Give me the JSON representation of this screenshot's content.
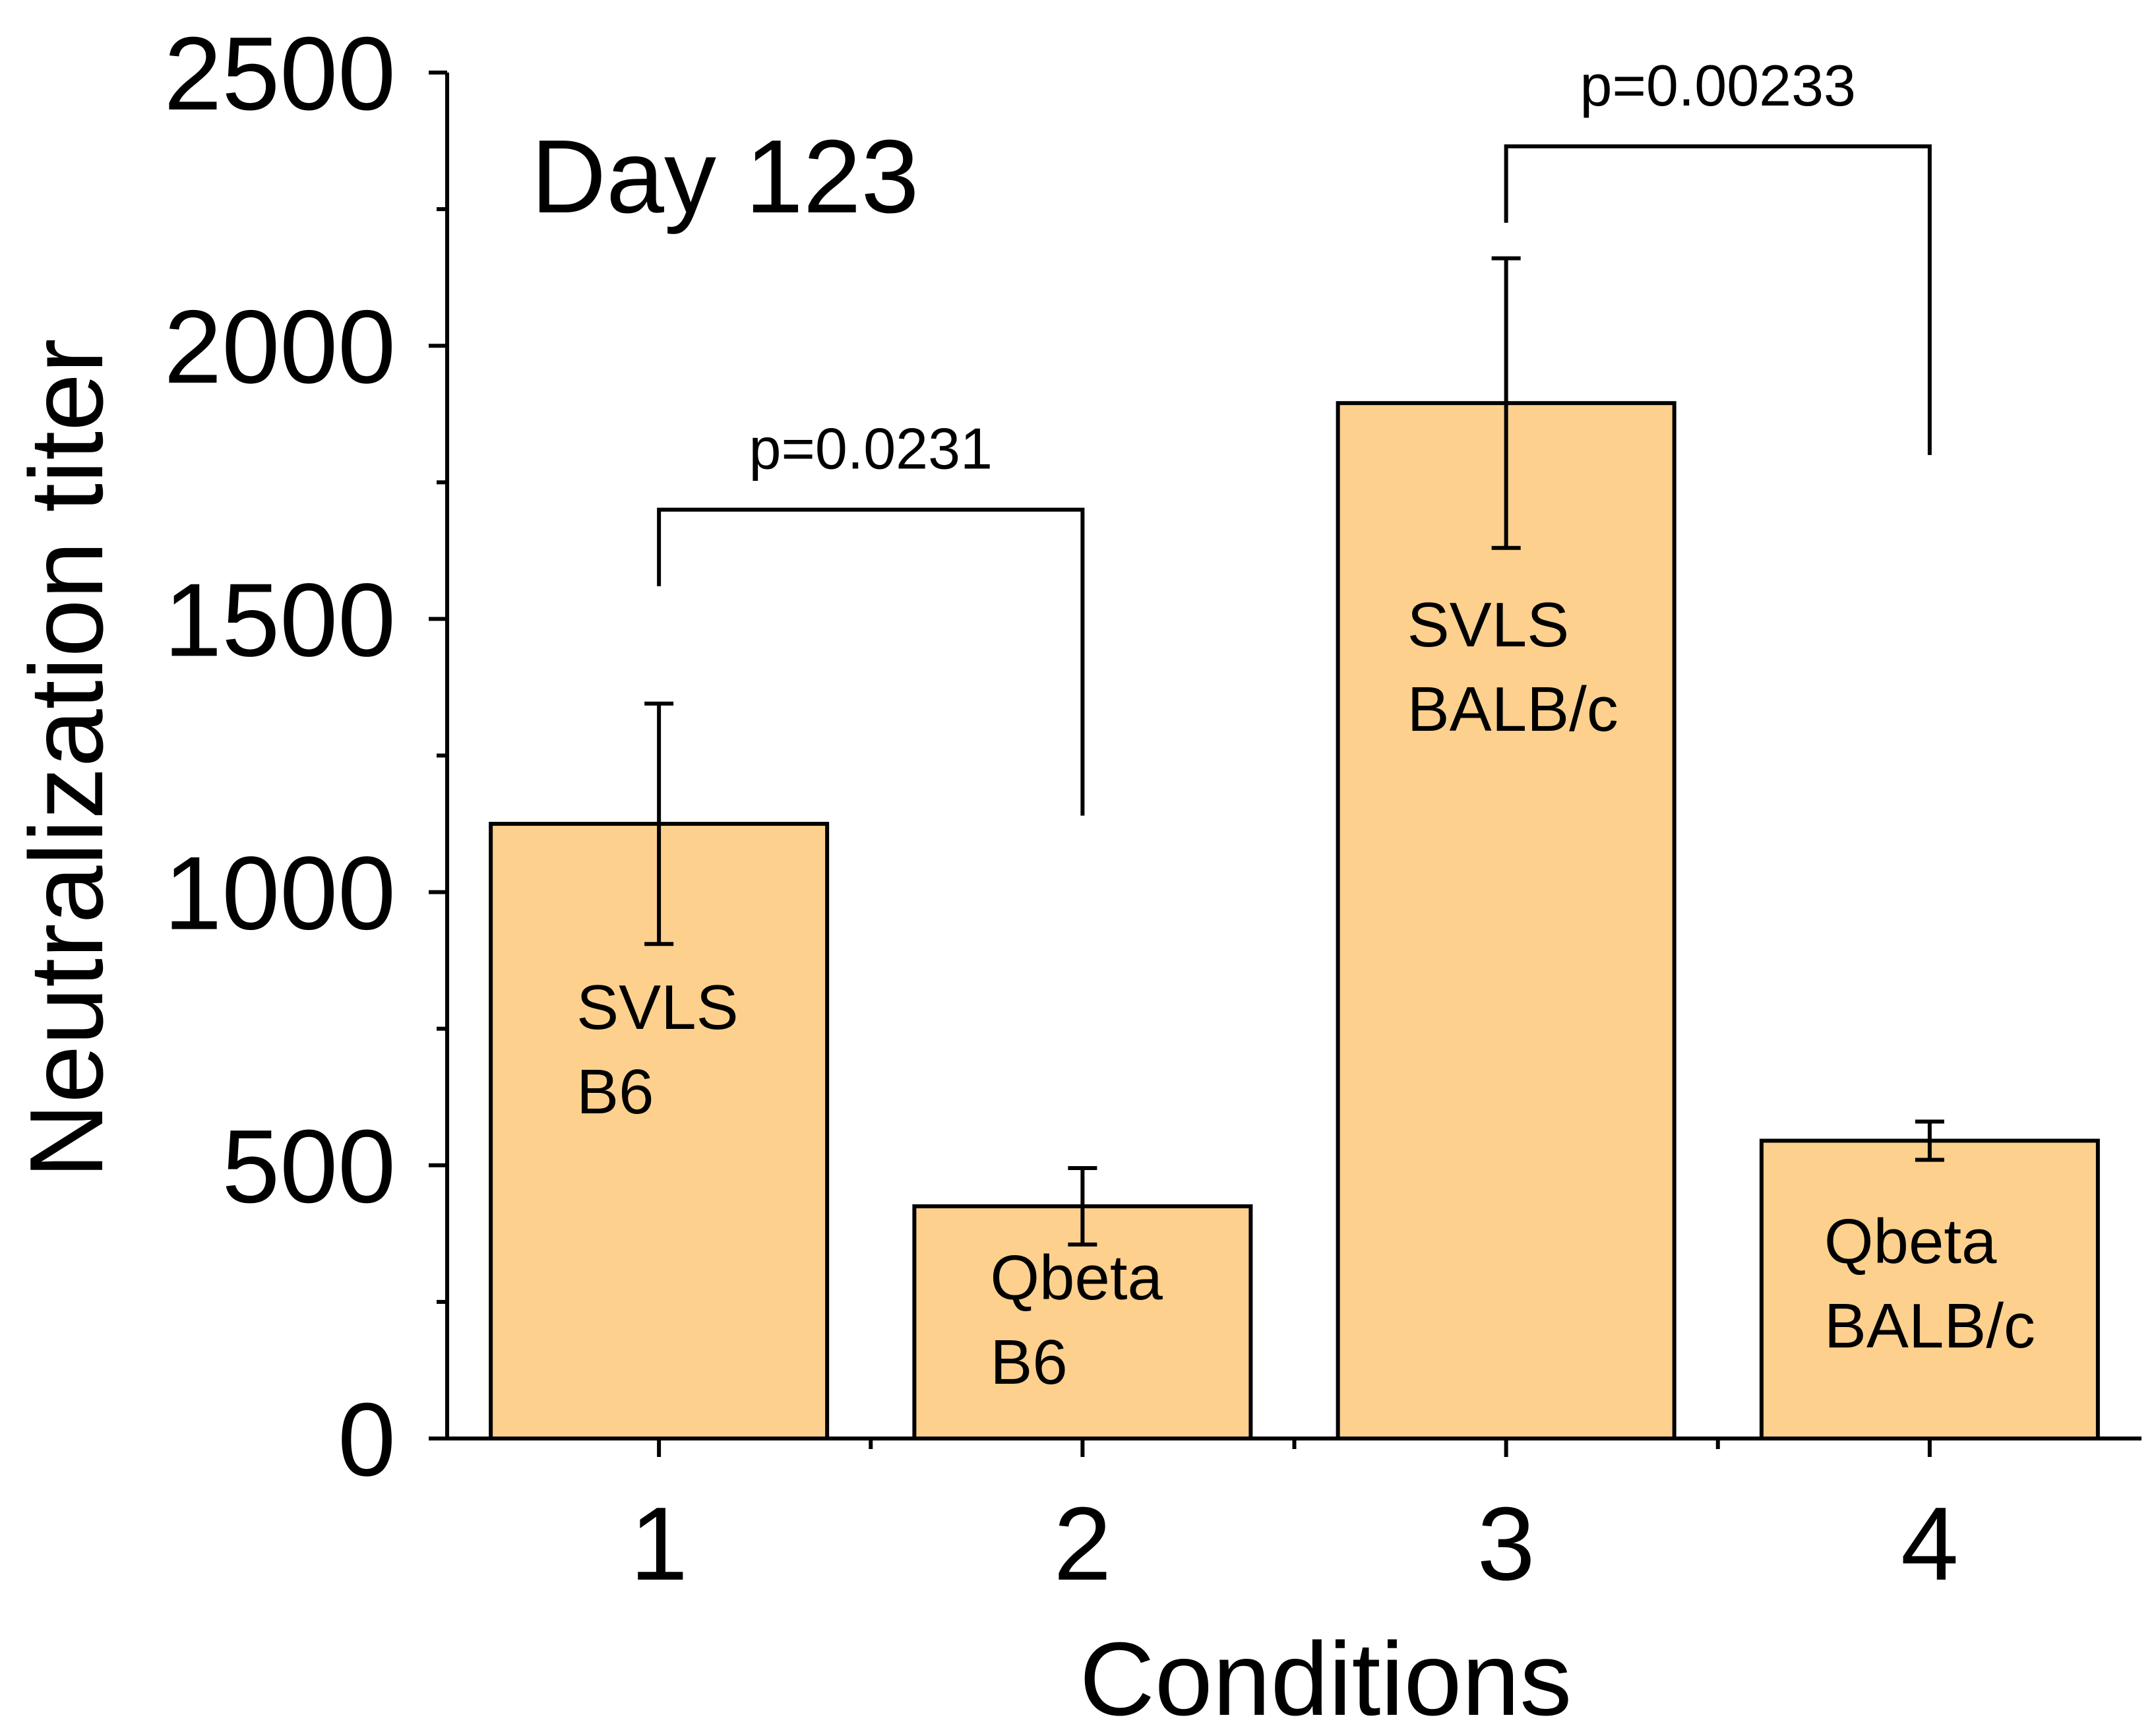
{
  "chart_data": {
    "type": "bar",
    "annotation": "Day 123",
    "xlabel": "Conditions",
    "ylabel": "Neutralization titer",
    "ylim": [
      0,
      2500
    ],
    "xlim": [
      0.5,
      4.5
    ],
    "yticks": [
      0,
      500,
      1000,
      1500,
      2000,
      2500
    ],
    "yticks_labels": [
      "0",
      "500",
      "1000",
      "1500",
      "2000",
      "2500"
    ],
    "y_minor_step": 250,
    "categories": [
      "1",
      "2",
      "3",
      "4"
    ],
    "x_minor_ticks": [
      1.5,
      2.5,
      3.5
    ],
    "values": [
      1125,
      425,
      1895,
      545
    ],
    "errors": [
      220,
      70,
      265,
      35
    ],
    "bar_labels": [
      [
        "SVLS",
        "B6"
      ],
      [
        "Qbeta",
        "B6"
      ],
      [
        "SVLS",
        "BALB/c"
      ],
      [
        "Qbeta",
        "BALB/c"
      ]
    ],
    "comparisons": [
      {
        "from": 1,
        "to": 2,
        "level": 1700,
        "from_end": 1560,
        "to_end": 1140,
        "label": "p=0.0231"
      },
      {
        "from": 3,
        "to": 4,
        "level": 2365,
        "from_end": 2225,
        "to_end": 1800,
        "label": "p=0.00233"
      }
    ],
    "bar_color": "#fdd08e",
    "edge_color": "#000000",
    "grid": false
  }
}
